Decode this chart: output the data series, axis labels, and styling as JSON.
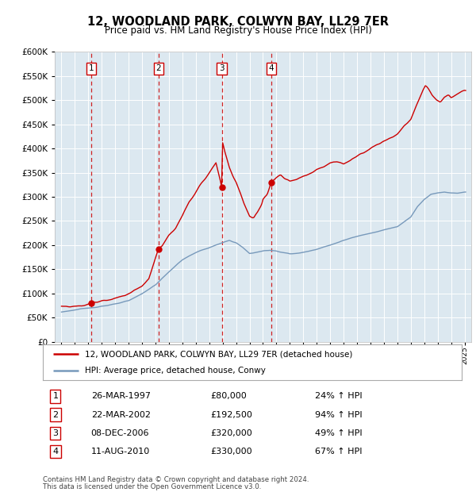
{
  "title": "12, WOODLAND PARK, COLWYN BAY, LL29 7ER",
  "subtitle": "Price paid vs. HM Land Registry's House Price Index (HPI)",
  "sale_years": [
    1997.23,
    2002.22,
    2006.93,
    2010.61
  ],
  "sale_prices": [
    80000,
    192500,
    320000,
    330000
  ],
  "sale_labels": [
    "1",
    "2",
    "3",
    "4"
  ],
  "legend_line1": "12, WOODLAND PARK, COLWYN BAY, LL29 7ER (detached house)",
  "legend_line2": "HPI: Average price, detached house, Conwy",
  "table_rows": [
    [
      "1",
      "26-MAR-1997",
      "£80,000",
      "24% ↑ HPI"
    ],
    [
      "2",
      "22-MAR-2002",
      "£192,500",
      "94% ↑ HPI"
    ],
    [
      "3",
      "08-DEC-2006",
      "£320,000",
      "49% ↑ HPI"
    ],
    [
      "4",
      "11-AUG-2010",
      "£330,000",
      "67% ↑ HPI"
    ]
  ],
  "footer1": "Contains HM Land Registry data © Crown copyright and database right 2024.",
  "footer2": "This data is licensed under the Open Government Licence v3.0.",
  "price_color": "#cc0000",
  "hpi_color": "#7799bb",
  "bg_color": "#dce8f0",
  "fig_bg": "#ffffff",
  "ylim_max": 600000,
  "ytick_step": 50000,
  "xmin": 1995,
  "xmax": 2025
}
